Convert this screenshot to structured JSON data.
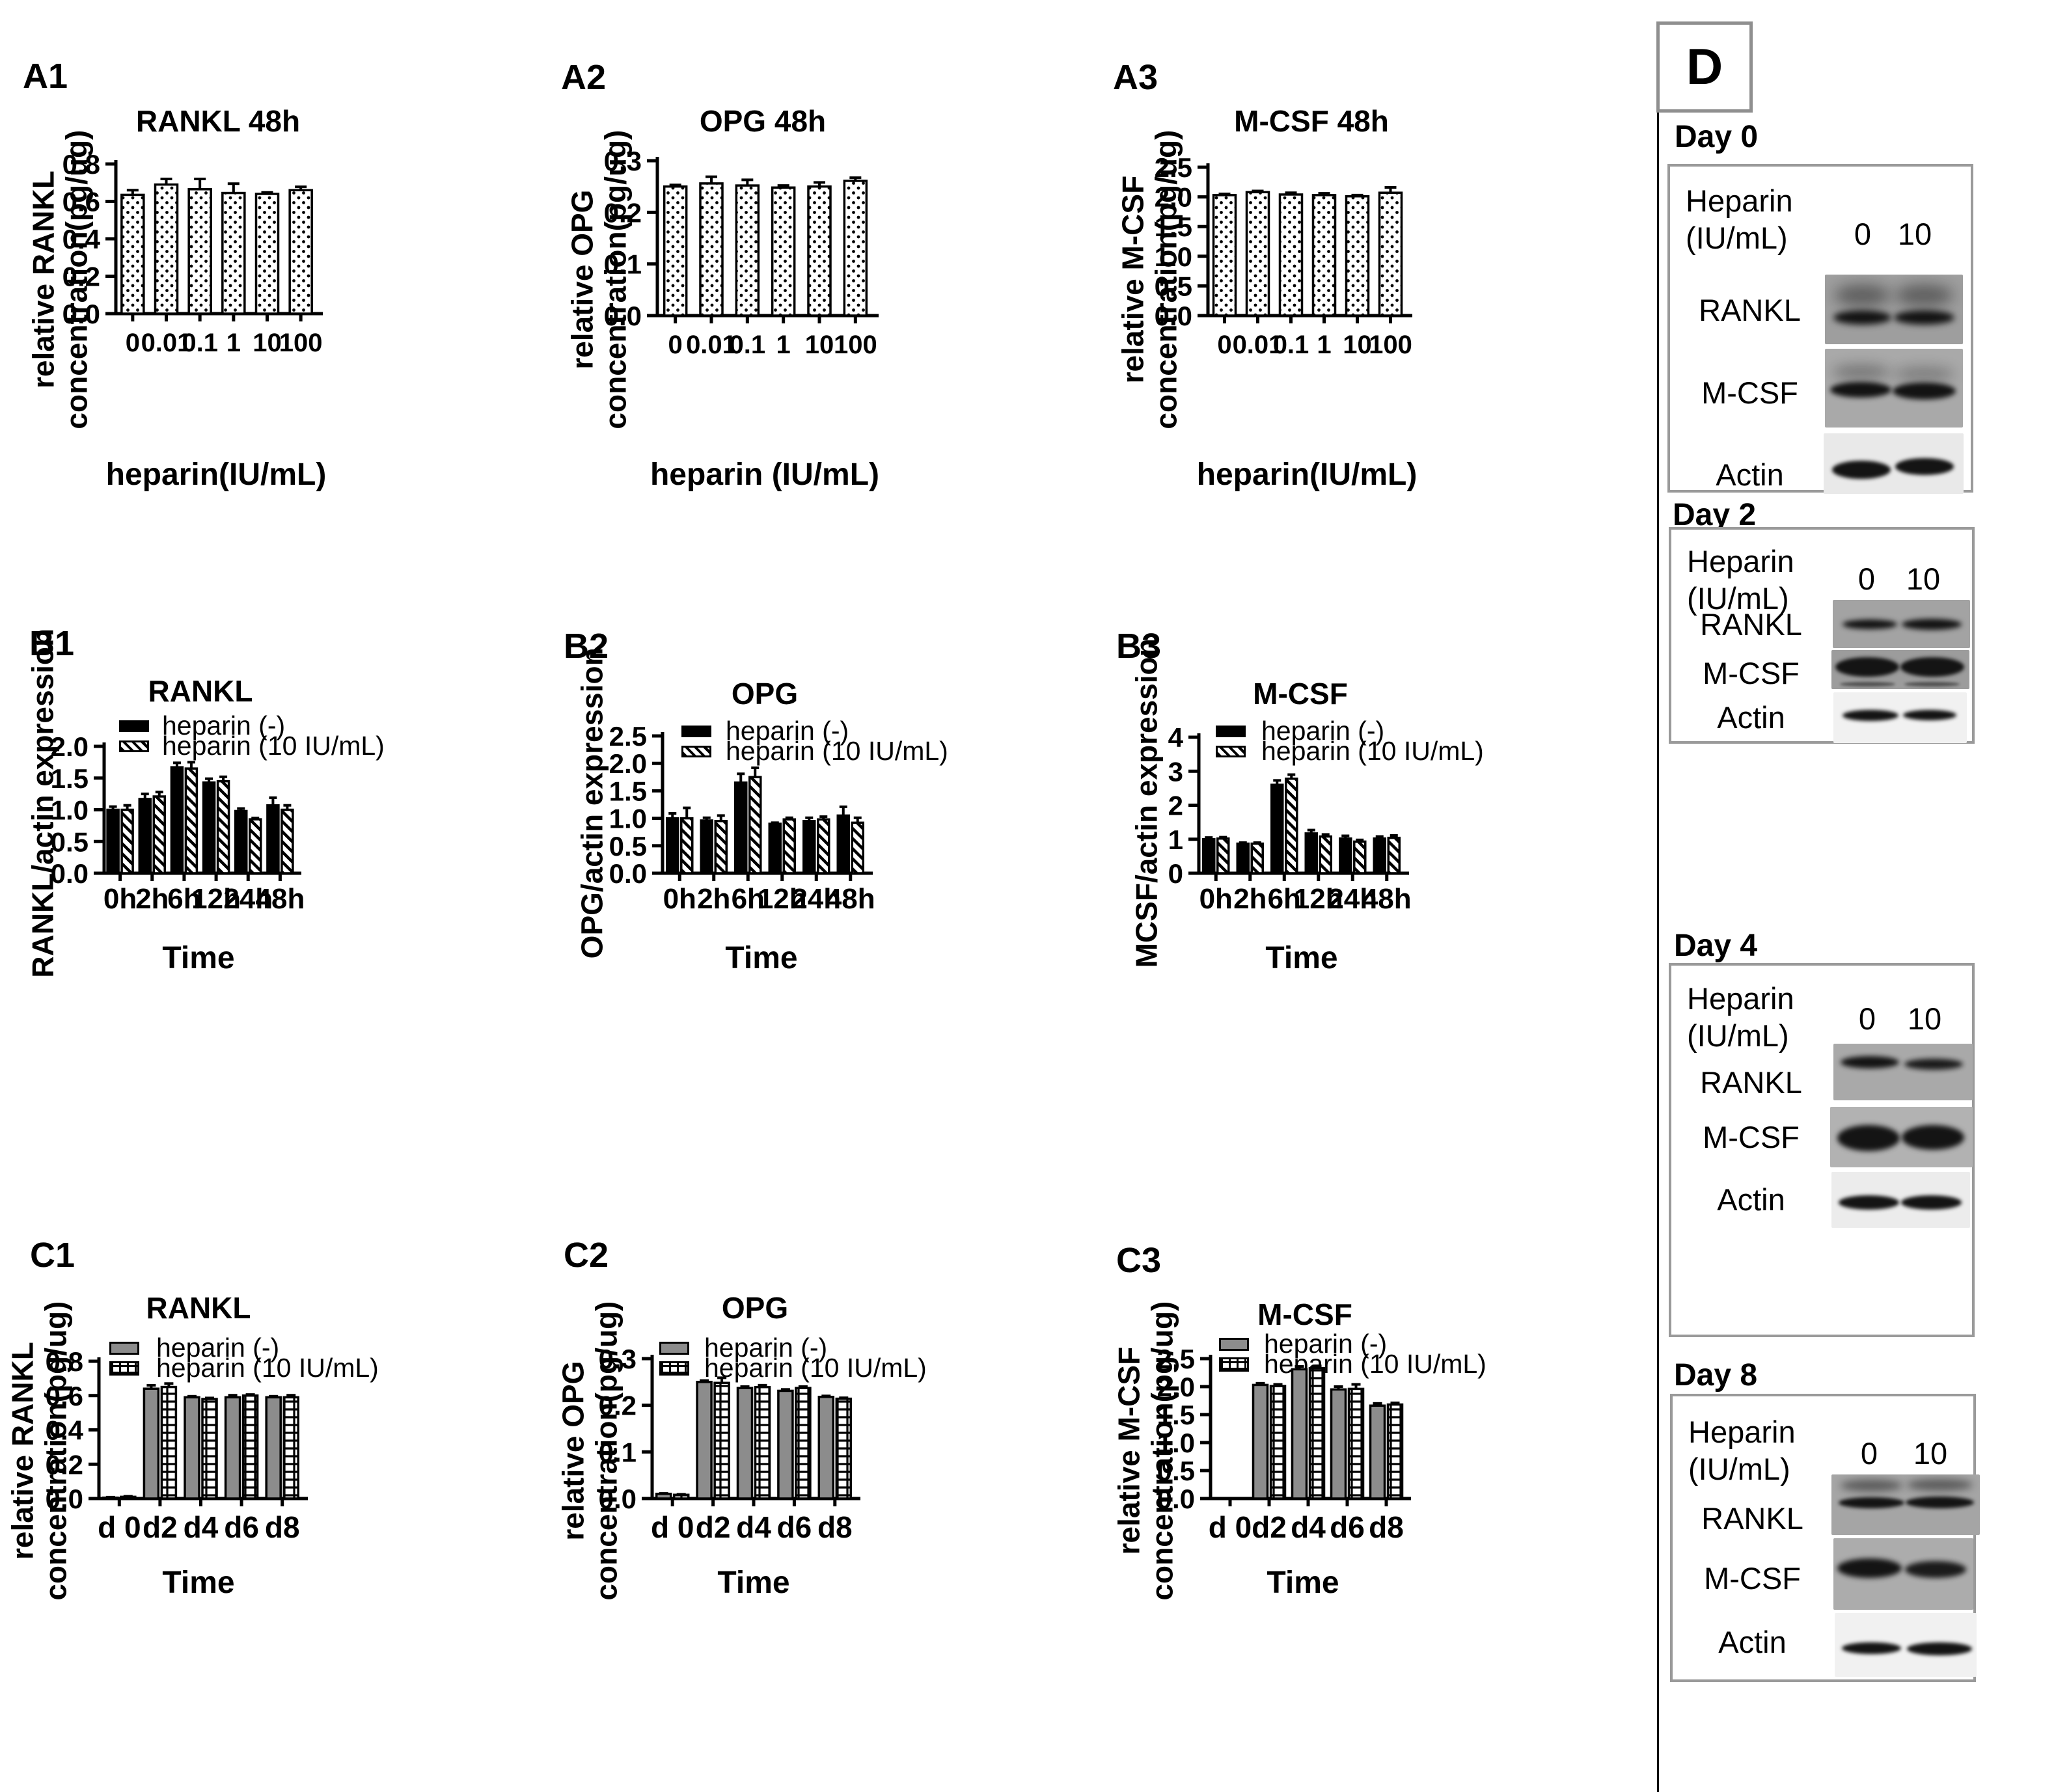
{
  "chart_data": [
    {
      "id": "A1",
      "panel_label": "A1",
      "type": "bar",
      "title": "RANKL 48h",
      "ylabel": "relative RANKL\nconcentration(pg/ug)",
      "xlabel": "heparin(IU/mL)",
      "categories": [
        "0",
        "0.01",
        "0.1",
        "1",
        "10",
        "100"
      ],
      "series": [
        {
          "name": "",
          "pattern": "dots",
          "values": [
            0.635,
            0.69,
            0.665,
            0.645,
            0.64,
            0.66
          ],
          "errors": [
            0.025,
            0.03,
            0.055,
            0.05,
            0.008,
            0.018
          ]
        }
      ],
      "ylim": [
        0,
        0.8
      ],
      "yticks": [
        0.0,
        0.2,
        0.4,
        0.6,
        0.8
      ],
      "ytick_labels": [
        "0.0",
        "0.2",
        "0.4",
        "0.6",
        "0.8"
      ],
      "grid": false,
      "legend_position": "none"
    },
    {
      "id": "A2",
      "panel_label": "A2",
      "type": "bar",
      "title": "OPG 48h",
      "ylabel": "relative OPG\nconcentration(pg/ug)",
      "xlabel": "heparin (IU/mL)",
      "categories": [
        "0",
        "0.01",
        "0.1",
        "1",
        "10",
        "100"
      ],
      "series": [
        {
          "name": "",
          "pattern": "dots",
          "values": [
            0.25,
            0.256,
            0.252,
            0.248,
            0.25,
            0.261
          ],
          "errors": [
            0.003,
            0.013,
            0.011,
            0.004,
            0.008,
            0.006
          ]
        }
      ],
      "ylim": [
        0,
        0.3
      ],
      "yticks": [
        0.0,
        0.1,
        0.2,
        0.3
      ],
      "ytick_labels": [
        "0.0",
        "0.1",
        "0.2",
        "0.3"
      ],
      "grid": false,
      "legend_position": "none"
    },
    {
      "id": "A3",
      "panel_label": "A3",
      "type": "bar",
      "title": "M-CSF 48h",
      "ylabel": "relative M-CSF\nconcentration(pg/ug)",
      "xlabel": "heparin(IU/mL)",
      "categories": [
        "0",
        "0.01",
        "0.1",
        "1",
        "10",
        "100"
      ],
      "series": [
        {
          "name": "",
          "pattern": "dots",
          "values": [
            2.03,
            2.08,
            2.04,
            2.03,
            2.01,
            2.07
          ],
          "errors": [
            0.02,
            0.02,
            0.03,
            0.03,
            0.02,
            0.09
          ]
        }
      ],
      "ylim": [
        0,
        2.5
      ],
      "yticks": [
        0.0,
        0.5,
        1.0,
        1.5,
        2.0,
        2.5
      ],
      "ytick_labels": [
        "0.0",
        "0.5",
        "1.0",
        "1.5",
        "2.0",
        "2.5"
      ],
      "grid": false,
      "legend_position": "none"
    },
    {
      "id": "B1",
      "panel_label": "B1",
      "type": "bar",
      "title": "RANKL",
      "ylabel": "RANKL/actin expression",
      "xlabel": "Time",
      "categories": [
        "0h",
        "2h",
        "6h",
        "12h",
        "24h",
        "48h"
      ],
      "series": [
        {
          "name": "heparin (-)",
          "pattern": "solid-black",
          "values": [
            1.0,
            1.17,
            1.67,
            1.43,
            0.98,
            1.07
          ],
          "errors": [
            0.05,
            0.08,
            0.07,
            0.06,
            0.04,
            0.12
          ]
        },
        {
          "name": "heparin (10 IU/mL)",
          "pattern": "hatch",
          "values": [
            1.0,
            1.21,
            1.65,
            1.45,
            0.85,
            1.0
          ],
          "errors": [
            0.07,
            0.07,
            0.1,
            0.07,
            0.02,
            0.07
          ]
        }
      ],
      "ylim": [
        0,
        2.0
      ],
      "yticks": [
        0.0,
        0.5,
        1.0,
        1.5,
        2.0
      ],
      "ytick_labels": [
        "0.0",
        "0.5",
        "1.0",
        "1.5",
        "2.0"
      ],
      "grid": false,
      "legend_position": "top-left-inside"
    },
    {
      "id": "B2",
      "panel_label": "B2",
      "type": "bar",
      "title": "OPG",
      "ylabel": "OPG/actin expression",
      "xlabel": "Time",
      "categories": [
        "0h",
        "2h",
        "6h",
        "12h",
        "24h",
        "48h"
      ],
      "series": [
        {
          "name": "heparin (-)",
          "pattern": "solid-black",
          "values": [
            1.0,
            0.96,
            1.65,
            0.9,
            0.95,
            1.05
          ],
          "errors": [
            0.09,
            0.05,
            0.16,
            0.02,
            0.06,
            0.16
          ]
        },
        {
          "name": "heparin (10 IU/mL)",
          "pattern": "hatch",
          "values": [
            1.0,
            0.95,
            1.75,
            0.98,
            0.98,
            0.92
          ],
          "errors": [
            0.19,
            0.1,
            0.17,
            0.03,
            0.05,
            0.09
          ]
        }
      ],
      "ylim": [
        0,
        2.5
      ],
      "yticks": [
        0.0,
        0.5,
        1.0,
        1.5,
        2.0,
        2.5
      ],
      "ytick_labels": [
        "0.0",
        "0.5",
        "1.0",
        "1.5",
        "2.0",
        "2.5"
      ],
      "grid": false,
      "legend_position": "top-left-inside"
    },
    {
      "id": "B3",
      "panel_label": "B3",
      "type": "bar",
      "title": "M-CSF",
      "ylabel": "MCSF/actin expression",
      "xlabel": "Time",
      "categories": [
        "0h",
        "2h",
        "6h",
        "12h",
        "24h",
        "48h"
      ],
      "series": [
        {
          "name": "heparin (-)",
          "pattern": "solid-black",
          "values": [
            1.0,
            0.87,
            2.6,
            1.17,
            1.02,
            1.02
          ],
          "errors": [
            0.05,
            0.03,
            0.13,
            0.1,
            0.08,
            0.06
          ]
        },
        {
          "name": "heparin (10 IU/mL)",
          "pattern": "hatch",
          "values": [
            1.02,
            0.87,
            2.78,
            1.08,
            0.93,
            1.04
          ],
          "errors": [
            0.04,
            0.03,
            0.12,
            0.06,
            0.05,
            0.07
          ]
        }
      ],
      "ylim": [
        0,
        4
      ],
      "yticks": [
        0,
        1,
        2,
        3,
        4
      ],
      "ytick_labels": [
        "0",
        "1",
        "2",
        "3",
        "4"
      ],
      "grid": false,
      "legend_position": "top-left-inside"
    },
    {
      "id": "C1",
      "panel_label": "C1",
      "type": "bar",
      "title": "RANKL",
      "ylabel": "relative RANKL\nconcentration(pg/ug)",
      "xlabel": "Time",
      "categories": [
        "d 0",
        "d2",
        "d4",
        "d6",
        "d8"
      ],
      "series": [
        {
          "name": "heparin (-)",
          "pattern": "solid-gray",
          "values": [
            0.005,
            0.64,
            0.59,
            0.59,
            0.59
          ],
          "errors": [
            0.003,
            0.02,
            0.006,
            0.012,
            0.006
          ]
        },
        {
          "name": "heparin (10 IU/mL)",
          "pattern": "grid",
          "values": [
            0.01,
            0.65,
            0.58,
            0.6,
            0.59
          ],
          "errors": [
            0.003,
            0.02,
            0.006,
            0.006,
            0.012
          ]
        }
      ],
      "ylim": [
        0,
        0.8
      ],
      "yticks": [
        0.0,
        0.2,
        0.4,
        0.6,
        0.8
      ],
      "ytick_labels": [
        "0.0",
        "0.2",
        "0.4",
        "0.6",
        "0.8"
      ],
      "grid": false,
      "legend_position": "top-left-inside"
    },
    {
      "id": "C2",
      "panel_label": "C2",
      "type": "bar",
      "title": "OPG",
      "ylabel": "relative OPG\nconcentration(pg/ug)",
      "xlabel": "Time",
      "categories": [
        "d 0",
        "d2",
        "d4",
        "d6",
        "d8"
      ],
      "series": [
        {
          "name": "heparin (-)",
          "pattern": "solid-gray",
          "values": [
            0.01,
            0.25,
            0.237,
            0.231,
            0.218
          ],
          "errors": [
            0.001,
            0.003,
            0.003,
            0.003,
            0.002
          ]
        },
        {
          "name": "heparin (10 IU/mL)",
          "pattern": "grid",
          "values": [
            0.008,
            0.248,
            0.239,
            0.237,
            0.214
          ],
          "errors": [
            0.001,
            0.011,
            0.004,
            0.003,
            0.002
          ]
        }
      ],
      "ylim": [
        0,
        0.3
      ],
      "yticks": [
        0.0,
        0.1,
        0.2,
        0.3
      ],
      "ytick_labels": [
        "0.0",
        "0.1",
        "0.2",
        "0.3"
      ],
      "grid": false,
      "legend_position": "top-left-inside"
    },
    {
      "id": "C3",
      "panel_label": "C3",
      "type": "bar",
      "title": "M-CSF",
      "ylabel": "relative M-CSF\nconcentration(pg/ug)",
      "xlabel": "Time",
      "categories": [
        "d 0",
        "d2",
        "d4",
        "d6",
        "d8"
      ],
      "series": [
        {
          "name": "heparin (-)",
          "pattern": "solid-gray",
          "values": [
            0.0,
            2.03,
            2.31,
            1.95,
            1.66
          ],
          "errors": [
            0,
            0.03,
            0.05,
            0.05,
            0.04
          ]
        },
        {
          "name": "heparin (10 IU/mL)",
          "pattern": "grid",
          "values": [
            0.0,
            2.01,
            2.33,
            1.96,
            1.68
          ],
          "errors": [
            0,
            0.03,
            0.04,
            0.08,
            0.03
          ]
        }
      ],
      "ylim": [
        0,
        2.5
      ],
      "yticks": [
        0.0,
        0.5,
        1.0,
        1.5,
        2.0,
        2.5
      ],
      "ytick_labels": [
        "0.0",
        "0.5",
        "1.0",
        "1.5",
        "2.0",
        "2.5"
      ],
      "grid": false,
      "legend_position": "top-left-inside"
    }
  ],
  "panel_d": {
    "label": "D",
    "blocks": [
      {
        "header": "Day 0",
        "heparin_label": "Heparin\n(IU/mL)",
        "lane_labels": [
          "0",
          "10"
        ],
        "rows": [
          "RANKL",
          "M-CSF",
          "Actin"
        ]
      },
      {
        "header": "Day 2",
        "heparin_label": "Heparin\n(IU/mL)",
        "lane_labels": [
          "0",
          "10"
        ],
        "rows": [
          "RANKL",
          "M-CSF",
          "Actin"
        ]
      },
      {
        "header": "Day 4",
        "heparin_label": "Heparin\n(IU/mL)",
        "lane_labels": [
          "0",
          "10"
        ],
        "rows": [
          "RANKL",
          "M-CSF",
          "Actin"
        ]
      },
      {
        "header": "Day 8",
        "heparin_label": "Heparin\n(IU/mL)",
        "lane_labels": [
          "0",
          "10"
        ],
        "rows": [
          "RANKL",
          "M-CSF",
          "Actin"
        ]
      }
    ]
  }
}
